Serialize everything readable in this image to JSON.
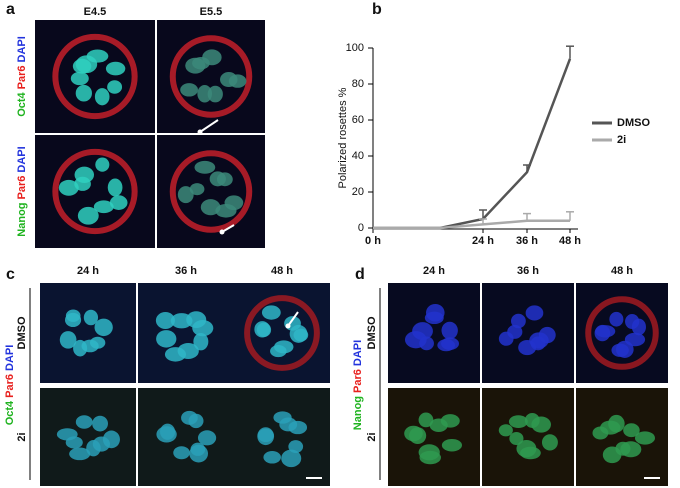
{
  "panel_labels": [
    "a",
    "b",
    "c",
    "d"
  ],
  "panel_a": {
    "columns": [
      "E4.5",
      "E5.5"
    ],
    "rows": [
      [
        "Oct4",
        "Par6",
        "DAPI"
      ],
      [
        "Nanog",
        "Par6",
        "DAPI"
      ]
    ]
  },
  "chart_data": {
    "type": "line",
    "y_label": "Polarized rosettes %",
    "categories": [
      "0 h",
      null,
      "24 h",
      "36 h",
      "48 h"
    ],
    "ylim": [
      0,
      100
    ],
    "yticks": [
      0,
      20,
      40,
      60,
      80,
      100
    ],
    "series": [
      {
        "name": "DMSO",
        "color": "#555555",
        "values": [
          0,
          0,
          5,
          31,
          94
        ],
        "errors": [
          null,
          null,
          5,
          4,
          7
        ]
      },
      {
        "name": "2i",
        "color": "#aaaaaa",
        "values": [
          0,
          0,
          2,
          4,
          4
        ],
        "errors": [
          null,
          null,
          3,
          4,
          5
        ]
      }
    ]
  },
  "panel_c": {
    "columns": [
      "24 h",
      "36 h",
      "48 h"
    ],
    "conditions": [
      "DMSO",
      "2i"
    ],
    "stain": [
      "Oct4",
      "Par6",
      "DAPI"
    ]
  },
  "panel_d": {
    "columns": [
      "24 h",
      "36 h",
      "48 h"
    ],
    "conditions": [
      "DMSO",
      "2i"
    ],
    "stain": [
      "Nanog",
      "Par6",
      "DAPI"
    ]
  }
}
